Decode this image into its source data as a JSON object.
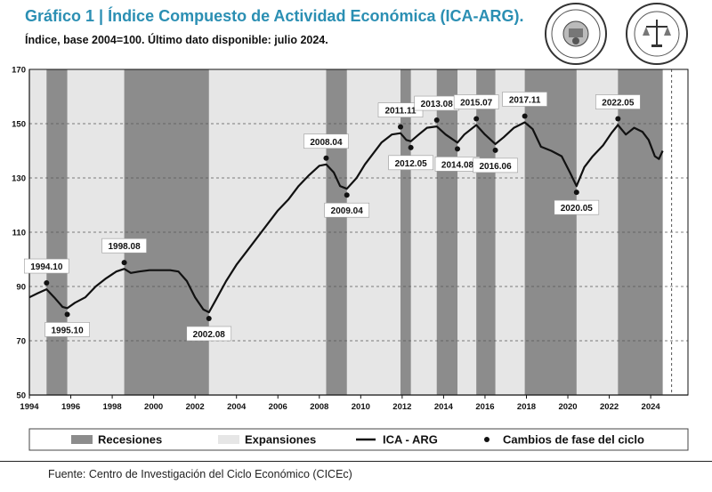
{
  "header": {
    "title": "Gráfico 1 | Índice Compuesto de Actividad Económica (ICA-ARG).",
    "subtitle": "Índice, base 2004=100. Último dato disponible: julio 2024."
  },
  "seals": [
    {
      "name": "Bolsa de Comercio de Rosario seal 1"
    },
    {
      "name": "Bolsa de Comercio de Rosario seal 2"
    }
  ],
  "source": "Fuente: Centro de Investigación del Ciclo Económico (CICEc)",
  "colors": {
    "title": "#2b8fb3",
    "recession": "#8c8c8c",
    "expansion": "#e6e6e6",
    "line": "#111111",
    "plot_bg": "#ffffff"
  },
  "chart_data": {
    "type": "line",
    "title": "Índice Compuesto de Actividad Económica (ICA-ARG)",
    "xlabel": "",
    "ylabel": "",
    "xlim": [
      1994,
      2025.8
    ],
    "ylim": [
      50,
      170
    ],
    "grid": true,
    "y_ticks": [
      50,
      70,
      90,
      110,
      130,
      150,
      170
    ],
    "x_ticks": [
      1994,
      1996,
      1998,
      2000,
      2002,
      2004,
      2006,
      2008,
      2010,
      2012,
      2014,
      2016,
      2018,
      2020,
      2022,
      2024
    ],
    "recessions": [
      [
        1994.83,
        1995.83
      ],
      [
        1998.58,
        2002.67
      ],
      [
        2008.33,
        2009.33
      ],
      [
        2011.92,
        2012.42
      ],
      [
        2013.67,
        2014.67
      ],
      [
        2015.58,
        2016.5
      ],
      [
        2017.92,
        2020.42
      ],
      [
        2022.42,
        2024.58
      ]
    ],
    "expansions_extent": [
      1994,
      2024.58
    ],
    "series": [
      {
        "name": "ICA - ARG",
        "points": [
          [
            1994.0,
            86
          ],
          [
            1994.4,
            87.5
          ],
          [
            1994.83,
            89
          ],
          [
            1995.2,
            86
          ],
          [
            1995.6,
            82.5
          ],
          [
            1995.83,
            82
          ],
          [
            1996.2,
            84
          ],
          [
            1996.7,
            86
          ],
          [
            1997.2,
            90
          ],
          [
            1997.7,
            93
          ],
          [
            1998.2,
            95.5
          ],
          [
            1998.58,
            96.5
          ],
          [
            1998.9,
            95
          ],
          [
            1999.3,
            95.5
          ],
          [
            1999.8,
            96
          ],
          [
            2000.3,
            96
          ],
          [
            2000.8,
            96
          ],
          [
            2001.2,
            95.5
          ],
          [
            2001.6,
            92
          ],
          [
            2002.0,
            86
          ],
          [
            2002.4,
            81.5
          ],
          [
            2002.67,
            80.5
          ],
          [
            2003.0,
            85
          ],
          [
            2003.5,
            92
          ],
          [
            2004.0,
            98
          ],
          [
            2004.5,
            103
          ],
          [
            2005.0,
            108
          ],
          [
            2005.5,
            113
          ],
          [
            2006.0,
            118
          ],
          [
            2006.5,
            122
          ],
          [
            2007.0,
            127
          ],
          [
            2007.5,
            131
          ],
          [
            2008.0,
            134.5
          ],
          [
            2008.33,
            135
          ],
          [
            2008.7,
            132
          ],
          [
            2009.0,
            127
          ],
          [
            2009.33,
            126
          ],
          [
            2009.8,
            130
          ],
          [
            2010.2,
            135
          ],
          [
            2010.6,
            139
          ],
          [
            2011.0,
            143
          ],
          [
            2011.5,
            146
          ],
          [
            2011.92,
            146.5
          ],
          [
            2012.2,
            144
          ],
          [
            2012.42,
            143.5
          ],
          [
            2012.8,
            146
          ],
          [
            2013.2,
            148.5
          ],
          [
            2013.67,
            149
          ],
          [
            2014.1,
            146
          ],
          [
            2014.67,
            143
          ],
          [
            2015.0,
            146
          ],
          [
            2015.58,
            149.5
          ],
          [
            2016.0,
            146
          ],
          [
            2016.5,
            142.5
          ],
          [
            2016.9,
            145
          ],
          [
            2017.4,
            148.5
          ],
          [
            2017.92,
            150.5
          ],
          [
            2018.3,
            148
          ],
          [
            2018.7,
            141.5
          ],
          [
            2019.2,
            140
          ],
          [
            2019.7,
            138
          ],
          [
            2020.1,
            132
          ],
          [
            2020.42,
            127
          ],
          [
            2020.8,
            134
          ],
          [
            2021.2,
            138
          ],
          [
            2021.7,
            142
          ],
          [
            2022.1,
            146.5
          ],
          [
            2022.42,
            149.5
          ],
          [
            2022.8,
            146
          ],
          [
            2023.2,
            148.5
          ],
          [
            2023.6,
            147
          ],
          [
            2023.9,
            144
          ],
          [
            2024.2,
            138
          ],
          [
            2024.4,
            137
          ],
          [
            2024.58,
            140
          ]
        ]
      }
    ],
    "phase_changes": [
      {
        "label": "1994.10",
        "x": 1994.83,
        "y": 89,
        "side": "top"
      },
      {
        "label": "1995.10",
        "x": 1995.83,
        "y": 82,
        "side": "bottom"
      },
      {
        "label": "1998.08",
        "x": 1998.58,
        "y": 96.5,
        "side": "top"
      },
      {
        "label": "2002.08",
        "x": 2002.67,
        "y": 80.5,
        "side": "bottom"
      },
      {
        "label": "2008.04",
        "x": 2008.33,
        "y": 135,
        "side": "top"
      },
      {
        "label": "2009.04",
        "x": 2009.33,
        "y": 126,
        "side": "bottom"
      },
      {
        "label": "2011.11",
        "x": 2011.92,
        "y": 146.5,
        "side": "top"
      },
      {
        "label": "2012.05",
        "x": 2012.42,
        "y": 143.5,
        "side": "bottom"
      },
      {
        "label": "2013.08",
        "x": 2013.67,
        "y": 149,
        "side": "top"
      },
      {
        "label": "2014.08",
        "x": 2014.67,
        "y": 143,
        "side": "bottom"
      },
      {
        "label": "2015.07",
        "x": 2015.58,
        "y": 149.5,
        "side": "top"
      },
      {
        "label": "2016.06",
        "x": 2016.5,
        "y": 142.5,
        "side": "bottom"
      },
      {
        "label": "2017.11",
        "x": 2017.92,
        "y": 150.5,
        "side": "top"
      },
      {
        "label": "2020.05",
        "x": 2020.42,
        "y": 127,
        "side": "bottom"
      },
      {
        "label": "2022.05",
        "x": 2022.42,
        "y": 149.5,
        "side": "top"
      }
    ],
    "legend": {
      "position": "bottom",
      "entries": [
        {
          "label": "Recesiones",
          "kind": "box-dark"
        },
        {
          "label": "Expansiones",
          "kind": "box-light"
        },
        {
          "label": "ICA - ARG",
          "kind": "line"
        },
        {
          "label": "Cambios de fase del ciclo",
          "kind": "dot"
        }
      ]
    }
  }
}
